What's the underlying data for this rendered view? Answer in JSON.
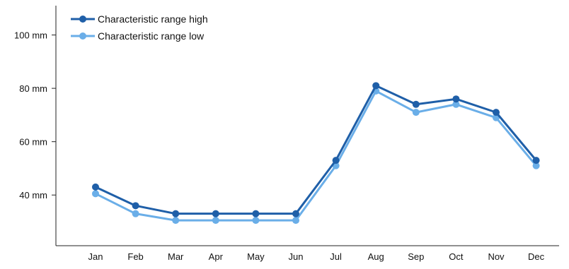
{
  "chart_data": {
    "type": "line",
    "title": "",
    "xlabel": "",
    "ylabel": "",
    "categories": [
      "Jan",
      "Feb",
      "Mar",
      "Apr",
      "May",
      "Jun",
      "Jul",
      "Aug",
      "Sep",
      "Oct",
      "Nov",
      "Dec"
    ],
    "series": [
      {
        "name": "Characteristic range high",
        "color": "#1f5fa8",
        "values": [
          43,
          36,
          33,
          33,
          33,
          33,
          53,
          81,
          74,
          76,
          71,
          53
        ]
      },
      {
        "name": "Characteristic range low",
        "color": "#6aaee8",
        "values": [
          40.5,
          33,
          30.5,
          30.5,
          30.5,
          30.5,
          51,
          79,
          71,
          74,
          69,
          51
        ]
      }
    ],
    "yticks": [
      40,
      60,
      80,
      100
    ],
    "ytick_labels": [
      "40 mm",
      "60 mm",
      "80 mm",
      "100 mm"
    ],
    "ylim": [
      21,
      111
    ],
    "grid": false,
    "legend": "top-left"
  }
}
